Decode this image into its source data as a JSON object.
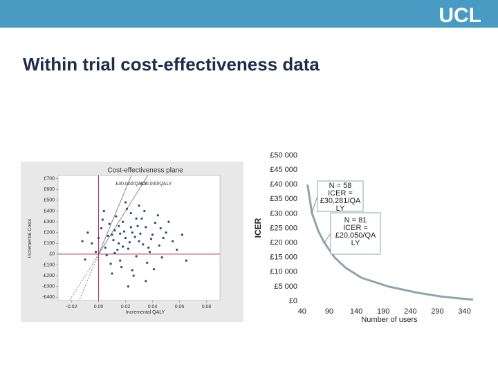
{
  "logo": "UCL",
  "slide_title": "Within trial cost-effectiveness data",
  "chart_data": [
    {
      "type": "scatter",
      "title": "Cost-effectiveness plane",
      "x_label": "Incremental QALY",
      "y_label": "Incremental Costs",
      "color": "#2b4a78",
      "xlim": [
        -0.03,
        0.09
      ],
      "ylim": [
        -430,
        730
      ],
      "xticks": [
        -0.02,
        {
          "value": 0,
          "label": "0.00"
        },
        0.02,
        0.04,
        0.06,
        0.08
      ],
      "yticks": [
        {
          "value": 700,
          "label": "£700"
        },
        {
          "value": 600,
          "label": "£600"
        },
        {
          "value": 500,
          "label": "£500"
        },
        {
          "value": 400,
          "label": "£400"
        },
        {
          "value": 300,
          "label": "£300"
        },
        {
          "value": 200,
          "label": "£200"
        },
        {
          "value": 100,
          "label": "£100"
        },
        {
          "value": 0,
          "label": "£0"
        },
        {
          "value": -100,
          "label": "-£100"
        },
        {
          "value": -200,
          "label": "-£200"
        },
        {
          "value": -300,
          "label": "-£300"
        },
        {
          "value": -400,
          "label": "-£400"
        }
      ],
      "thresholds": [
        {
          "label": "£30,000/QALY",
          "value": 30000
        },
        {
          "label": "£20,000/QALY",
          "value": 20000
        }
      ],
      "x": [
        0.02,
        0.015,
        0.025,
        0.01,
        0.03,
        0.005,
        0.035,
        0.018,
        0.022,
        0.028,
        0.012,
        0.04,
        0.0,
        0.045,
        0.008,
        0.032,
        0.016,
        0.024,
        0.038,
        0.002,
        -0.005,
        0.05,
        0.027,
        0.014,
        0.019,
        0.033,
        0.011,
        0.042,
        0.006,
        0.036,
        0.021,
        0.029,
        0.003,
        0.047,
        0.013,
        -0.008,
        0.055,
        0.017,
        0.025,
        0.034,
        0.009,
        0.044,
        -0.002,
        0.023,
        0.031,
        0.015,
        0.039,
        0.052,
        0.007,
        0.026,
        0.02,
        0.058,
        -0.012,
        0.041,
        0.018,
        0.035,
        0.028,
        0.004,
        0.062,
        0.01,
        0.046,
        0.022,
        0.012,
        0.037,
        0.03,
        -0.01,
        0.048,
        0.016,
        0.065,
        0.024
      ],
      "values": [
        150,
        100,
        200,
        180,
        120,
        60,
        250,
        300,
        50,
        -20,
        220,
        180,
        150,
        80,
        280,
        330,
        -60,
        380,
        20,
        240,
        100,
        200,
        160,
        40,
        210,
        90,
        130,
        290,
        -10,
        -80,
        420,
        260,
        320,
        -30,
        350,
        200,
        120,
        -120,
        -150,
        400,
        -90,
        360,
        20,
        110,
        190,
        260,
        140,
        300,
        170,
        -200,
        480,
        40,
        120,
        -140,
        70,
        -250,
        330,
        400,
        180,
        -180,
        240,
        -300,
        10,
        60,
        450,
        -50,
        150,
        190,
        -60,
        250
      ]
    },
    {
      "type": "line",
      "x_label": "Number of users",
      "y_label": "ICER",
      "color": "#8fa3ad",
      "xlim": [
        30,
        370
      ],
      "ylim": [
        0,
        50000
      ],
      "xticks": [
        40,
        90,
        140,
        190,
        240,
        290,
        340
      ],
      "yticks": [
        {
          "value": 50000,
          "label": "£50 000"
        },
        {
          "value": 45000,
          "label": "£45 000"
        },
        {
          "value": 40000,
          "label": "£40 000"
        },
        {
          "value": 35000,
          "label": "£35 000"
        },
        {
          "value": 30000,
          "label": "£30 000"
        },
        {
          "value": 25000,
          "label": "£25 000"
        },
        {
          "value": 20000,
          "label": "£20 000"
        },
        {
          "value": 15000,
          "label": "£15 000"
        },
        {
          "value": 10000,
          "label": "£10 000"
        },
        {
          "value": 5000,
          "label": "£5 000"
        },
        {
          "value": 0,
          "label": "£0"
        }
      ],
      "x": [
        50,
        58,
        70,
        81,
        100,
        120,
        150,
        200,
        250,
        300,
        356
      ],
      "values": [
        40000,
        30281,
        24000,
        20050,
        15000,
        11500,
        8000,
        5000,
        3000,
        1500,
        500
      ],
      "annotations": [
        {
          "x": 58,
          "y": 30281,
          "lines": [
            "N = 58",
            "ICER =",
            "£30,281/QA",
            "LY"
          ]
        },
        {
          "x": 81,
          "y": 20050,
          "lines": [
            "N = 81",
            "ICER =",
            "£20,050/QA",
            "LY"
          ]
        }
      ]
    }
  ]
}
